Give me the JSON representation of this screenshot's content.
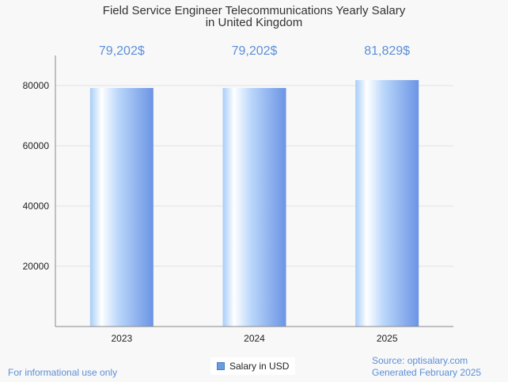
{
  "chart_data": {
    "type": "bar",
    "title": "Field Service Engineer Telecommunications Yearly Salary in United Kingdom",
    "title_lines": [
      "Field Service Engineer Telecommunications Yearly Salary",
      "in United Kingdom"
    ],
    "categories": [
      "2023",
      "2024",
      "2025"
    ],
    "series": [
      {
        "name": "Salary in USD",
        "values": [
          79202,
          79202,
          81829
        ],
        "color": "#6a9de0"
      }
    ],
    "data_labels": [
      "79,202$",
      "79,202$",
      "81,829$"
    ],
    "ylim": [
      0,
      90000
    ],
    "yticks": [
      20000,
      40000,
      60000,
      80000
    ],
    "grid": true,
    "legend": "bottom-center",
    "xlabel": "",
    "ylabel": ""
  },
  "footer": {
    "left_note": "For informational use only",
    "source": "Source: optisalary.com",
    "generated": "Generated February 2025"
  },
  "colors": {
    "bar_light": "#ffffff",
    "bar_mid": "#a8cdf8",
    "bar_dark": "#6b94e4",
    "label": "#5b8fd8",
    "grid": "#e2e2e2",
    "axis": "#888888"
  }
}
